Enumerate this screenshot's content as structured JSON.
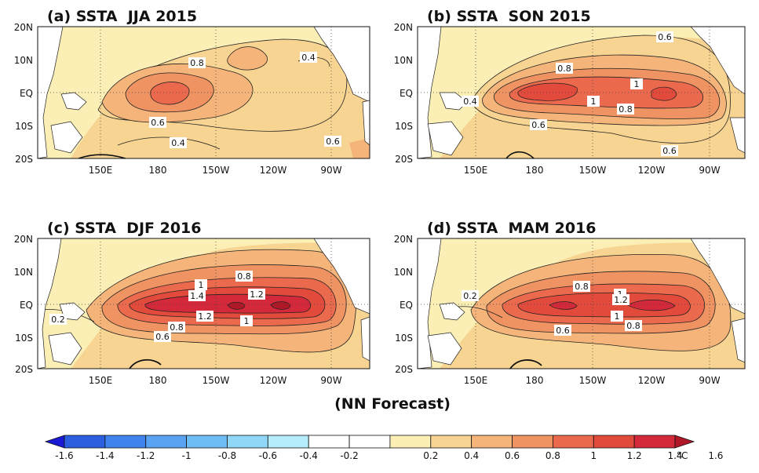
{
  "figure": {
    "footer": "(NN Forecast)",
    "lat_labels": [
      "20N",
      "10N",
      "EQ",
      "10S",
      "20S"
    ],
    "lon_labels": [
      "150E",
      "180",
      "150W",
      "120W",
      "90W"
    ],
    "unit": "°C"
  },
  "panels": [
    {
      "title": "(a) SSTA  JJA 2015",
      "contour_labels": [
        "0.8",
        "0.4",
        "0.6",
        "0.4",
        "0.6"
      ],
      "peak_anomaly": 1.0
    },
    {
      "title": "(b) SSTA  SON 2015",
      "contour_labels": [
        "0.6",
        "0.8",
        "1",
        "0.4",
        "1",
        "0.8",
        "0.6",
        "0.6"
      ],
      "peak_anomaly": 1.4
    },
    {
      "title": "(c) SSTA  DJF 2016",
      "contour_labels": [
        "1",
        "0.8",
        "1.4",
        "1.2",
        "1.2",
        "1",
        "0.2",
        "0.8",
        "0.6"
      ],
      "peak_anomaly": 1.8
    },
    {
      "title": "(d) SSTA  MAM 2016",
      "contour_labels": [
        "0.2",
        "0.8",
        "1",
        "1.2",
        "1",
        "0.8",
        "0.6"
      ],
      "peak_anomaly": 1.6
    }
  ],
  "colorbar": {
    "ticks": [
      "-1.6",
      "-1.4",
      "-1.2",
      "-1",
      "-0.8",
      "-0.6",
      "-0.4",
      "-0.2",
      "0.2",
      "0.4",
      "0.6",
      "0.8",
      "1",
      "1.2",
      "1.4",
      "1.6"
    ],
    "colors": [
      "#1a1ad6",
      "#2c5fe0",
      "#3f83ec",
      "#5aa2f2",
      "#6fbdf5",
      "#8fd6f7",
      "#b4ecfa",
      "#ffffff",
      "#ffffff",
      "#fbefb6",
      "#f8d492",
      "#f5b57a",
      "#ef9362",
      "#eb6a4e",
      "#e24a3c",
      "#d3293a",
      "#b01827"
    ]
  }
}
